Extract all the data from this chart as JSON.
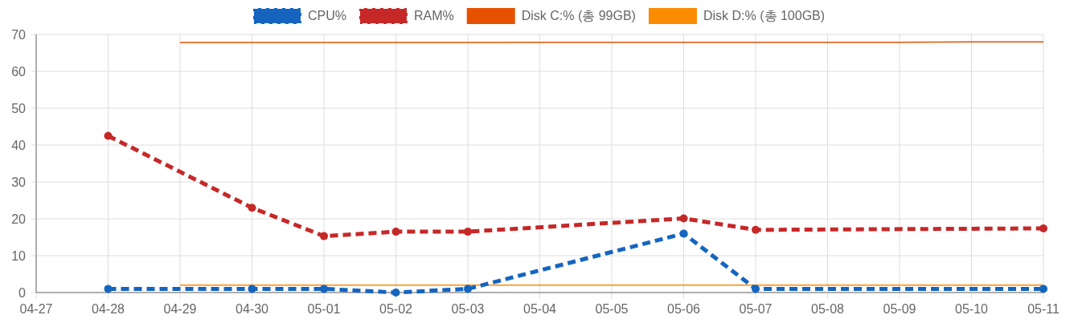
{
  "chart_data": {
    "type": "line",
    "categories": [
      "04-27",
      "04-28",
      "04-29",
      "04-30",
      "05-01",
      "05-02",
      "05-03",
      "05-04",
      "05-05",
      "05-06",
      "05-07",
      "05-08",
      "05-09",
      "05-10",
      "05-11"
    ],
    "series": [
      {
        "name": "CPU%",
        "color": "#1565c0",
        "line_style": "dashed",
        "values": [
          null,
          1,
          null,
          1,
          1,
          0,
          1,
          null,
          null,
          16,
          1,
          null,
          null,
          null,
          1
        ]
      },
      {
        "name": "RAM%",
        "color": "#c62828",
        "line_style": "dashed",
        "values": [
          null,
          42.5,
          null,
          23,
          15.3,
          16.5,
          16.5,
          null,
          null,
          20.1,
          17,
          null,
          null,
          null,
          17.4
        ]
      },
      {
        "name": "Disk C:% (총 99GB)",
        "color": "#e65100",
        "line_style": "solid",
        "marker": "none",
        "values": [
          null,
          null,
          67.8,
          67.8,
          67.8,
          67.8,
          67.8,
          67.9,
          67.9,
          67.9,
          67.9,
          67.9,
          67.9,
          68,
          68
        ]
      },
      {
        "name": "Disk D:% (총 100GB)",
        "color": "#fb8c00",
        "line_style": "solid",
        "marker": "none",
        "values": [
          null,
          null,
          2,
          2,
          2,
          2,
          2,
          2,
          2,
          2,
          2,
          2,
          2,
          2,
          2
        ]
      }
    ],
    "ylim": [
      0,
      70
    ],
    "yticks": [
      0,
      10,
      20,
      30,
      40,
      50,
      60,
      70
    ],
    "grid": true,
    "legend": "top",
    "marker": "circle"
  }
}
